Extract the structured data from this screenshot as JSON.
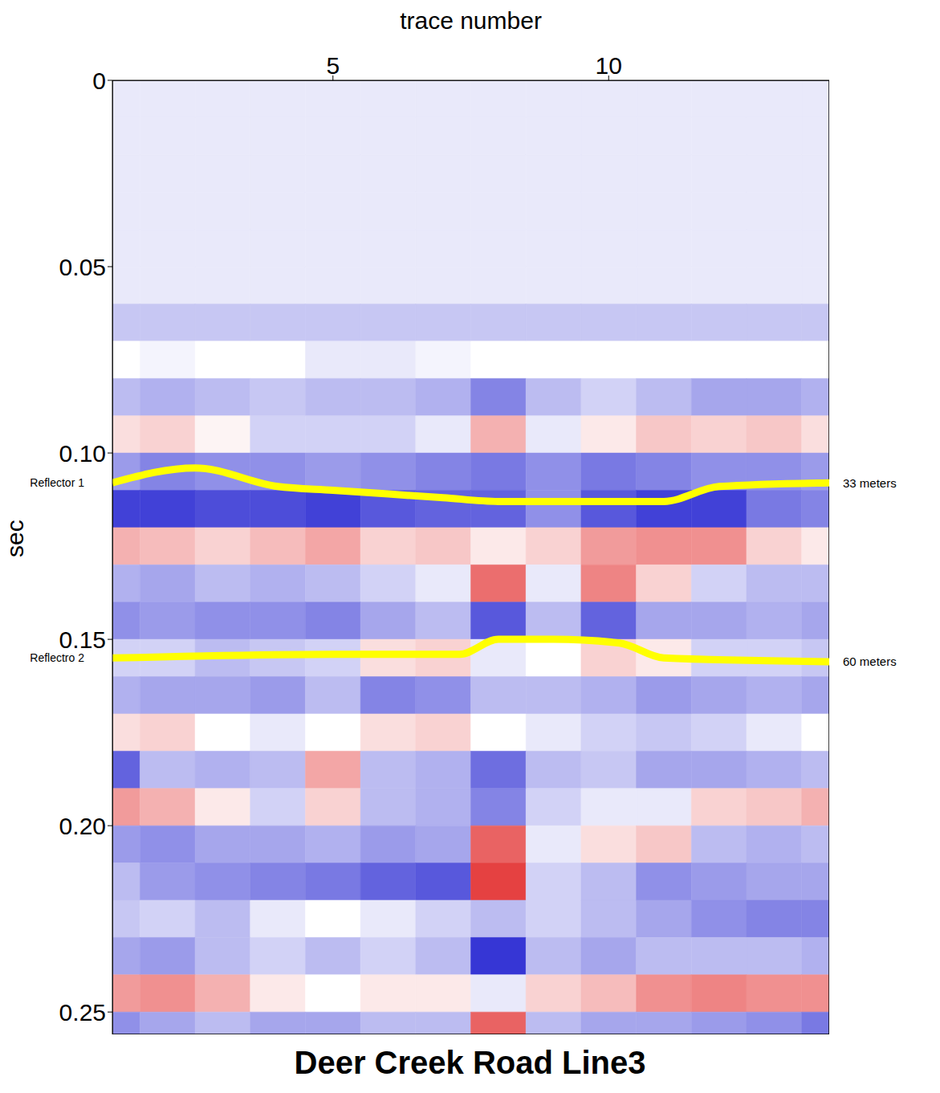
{
  "chart_data": {
    "type": "heatmap",
    "title": "Deer Creek Road Line3",
    "x_label": "trace number",
    "y_label": "sec",
    "xlim": [
      1,
      14
    ],
    "xticks": [
      5,
      10
    ],
    "ylim": [
      0,
      0.256
    ],
    "yticks": [
      0,
      0.05,
      {
        "value": 0.1,
        "label": "0.10"
      },
      0.15,
      {
        "value": 0.2,
        "label": "0.20"
      },
      0.25
    ],
    "cells": {
      "x_edges": [
        0.5,
        1.5,
        2.5,
        3.5,
        4.5,
        5.5,
        6.5,
        7.5,
        8.5,
        9.5,
        10.5,
        11.5,
        12.5,
        13.5,
        14.5
      ],
      "y_edges": [
        0,
        0.01,
        0.02,
        0.03,
        0.04,
        0.05,
        0.06,
        0.07,
        0.08,
        0.09,
        0.1,
        0.11,
        0.12,
        0.13,
        0.14,
        0.15,
        0.16,
        0.17,
        0.18,
        0.19,
        0.2,
        0.21,
        0.22,
        0.23,
        0.24,
        0.25,
        0.26
      ],
      "amplitude_range": [
        -1,
        1
      ],
      "colors": [
        "#2020d0",
        "#ffffff",
        "#e02020"
      ],
      "values": [
        [
          -0.1,
          -0.1,
          -0.1,
          -0.1,
          -0.1,
          -0.1,
          -0.1,
          -0.1,
          -0.1,
          -0.1,
          -0.1,
          -0.1,
          -0.1,
          -0.1
        ],
        [
          -0.1,
          -0.1,
          -0.1,
          -0.1,
          -0.1,
          -0.1,
          -0.1,
          -0.1,
          -0.1,
          -0.1,
          -0.1,
          -0.1,
          -0.1,
          -0.1
        ],
        [
          -0.1,
          -0.1,
          -0.1,
          -0.1,
          -0.1,
          -0.1,
          -0.1,
          -0.1,
          -0.1,
          -0.1,
          -0.1,
          -0.1,
          -0.1,
          -0.1
        ],
        [
          -0.1,
          -0.1,
          -0.1,
          -0.1,
          -0.1,
          -0.1,
          -0.1,
          -0.1,
          -0.1,
          -0.1,
          -0.1,
          -0.1,
          -0.1,
          -0.1
        ],
        [
          -0.1,
          -0.1,
          -0.1,
          -0.1,
          -0.1,
          -0.1,
          -0.1,
          -0.1,
          -0.1,
          -0.1,
          -0.1,
          -0.1,
          -0.1,
          -0.1
        ],
        [
          -0.1,
          -0.1,
          -0.1,
          -0.1,
          -0.1,
          -0.1,
          -0.1,
          -0.1,
          -0.1,
          -0.1,
          -0.1,
          -0.1,
          -0.1,
          -0.1
        ],
        [
          -0.25,
          -0.25,
          -0.25,
          -0.25,
          -0.25,
          -0.25,
          -0.25,
          -0.25,
          -0.25,
          -0.25,
          -0.25,
          -0.25,
          -0.25,
          -0.25
        ],
        [
          0,
          -0.05,
          0,
          0,
          -0.1,
          -0.1,
          -0.05,
          0,
          0,
          0,
          0,
          0,
          0,
          0
        ],
        [
          -0.3,
          -0.35,
          -0.3,
          -0.25,
          -0.3,
          -0.3,
          -0.35,
          -0.55,
          -0.3,
          -0.2,
          -0.3,
          -0.4,
          -0.4,
          -0.35
        ],
        [
          0.15,
          0.2,
          0.05,
          -0.2,
          -0.2,
          -0.2,
          -0.1,
          0.35,
          -0.1,
          0.1,
          0.25,
          0.2,
          0.25,
          0.15
        ],
        [
          -0.45,
          -0.55,
          -0.5,
          -0.5,
          -0.45,
          -0.5,
          -0.55,
          -0.6,
          -0.5,
          -0.6,
          -0.55,
          -0.5,
          -0.5,
          -0.45
        ],
        [
          -0.85,
          -0.85,
          -0.8,
          -0.8,
          -0.85,
          -0.75,
          -0.7,
          -0.7,
          -0.5,
          -0.75,
          -0.85,
          -0.85,
          -0.6,
          -0.55
        ],
        [
          0.35,
          0.3,
          0.2,
          0.3,
          0.4,
          0.2,
          0.25,
          0.1,
          0.2,
          0.45,
          0.5,
          0.5,
          0.2,
          0.1
        ],
        [
          -0.35,
          -0.4,
          -0.3,
          -0.35,
          -0.3,
          -0.2,
          -0.1,
          0.65,
          -0.1,
          0.55,
          0.2,
          -0.2,
          -0.3,
          -0.3
        ],
        [
          -0.5,
          -0.45,
          -0.5,
          -0.5,
          -0.55,
          -0.4,
          -0.3,
          -0.75,
          -0.3,
          -0.7,
          -0.4,
          -0.4,
          -0.35,
          -0.4
        ],
        [
          -0.2,
          -0.2,
          -0.3,
          -0.25,
          -0.2,
          0.15,
          0.2,
          -0.1,
          0,
          0.2,
          0.1,
          -0.2,
          -0.2,
          -0.25
        ],
        [
          -0.35,
          -0.4,
          -0.4,
          -0.45,
          -0.3,
          -0.55,
          -0.5,
          -0.3,
          -0.3,
          -0.35,
          -0.45,
          -0.4,
          -0.35,
          -0.4
        ],
        [
          0.15,
          0.2,
          0,
          -0.1,
          0,
          0.15,
          0.2,
          0,
          -0.1,
          -0.2,
          -0.25,
          -0.2,
          -0.1,
          0
        ],
        [
          -0.7,
          -0.3,
          -0.35,
          -0.3,
          0.4,
          -0.3,
          -0.35,
          -0.65,
          -0.3,
          -0.25,
          -0.4,
          -0.4,
          -0.35,
          -0.3
        ],
        [
          0.45,
          0.35,
          0.1,
          -0.2,
          0.2,
          -0.3,
          -0.35,
          -0.55,
          -0.2,
          -0.1,
          -0.1,
          0.2,
          0.25,
          0.35
        ],
        [
          -0.45,
          -0.5,
          -0.4,
          -0.4,
          -0.35,
          -0.45,
          -0.4,
          0.7,
          -0.1,
          0.15,
          0.25,
          -0.3,
          -0.35,
          -0.3
        ],
        [
          -0.3,
          -0.45,
          -0.5,
          -0.55,
          -0.6,
          -0.7,
          -0.75,
          0.85,
          -0.2,
          -0.3,
          -0.5,
          -0.45,
          -0.4,
          -0.4
        ],
        [
          -0.25,
          -0.2,
          -0.3,
          -0.1,
          0,
          -0.1,
          -0.2,
          -0.3,
          -0.2,
          -0.3,
          -0.4,
          -0.5,
          -0.55,
          -0.55
        ],
        [
          -0.4,
          -0.45,
          -0.3,
          -0.2,
          -0.3,
          -0.2,
          -0.3,
          -0.9,
          -0.3,
          -0.4,
          -0.3,
          -0.3,
          -0.3,
          -0.35
        ],
        [
          0.45,
          0.5,
          0.35,
          0.1,
          0,
          0.1,
          0.1,
          -0.1,
          0.2,
          0.3,
          0.5,
          0.55,
          0.5,
          0.5
        ],
        [
          -0.5,
          -0.4,
          -0.3,
          -0.4,
          -0.4,
          -0.3,
          -0.3,
          0.7,
          -0.3,
          -0.4,
          -0.4,
          -0.45,
          -0.5,
          -0.6
        ]
      ]
    },
    "series": [
      {
        "name": "Reflector 1",
        "color": "#ffff00",
        "annotation": "33 meters",
        "x": [
          1,
          2.5,
          4,
          5,
          7,
          8,
          11,
          12,
          14
        ],
        "values": [
          0.108,
          0.104,
          0.109,
          0.11,
          0.112,
          0.113,
          0.113,
          0.109,
          0.108
        ]
      },
      {
        "name": "Reflectro 2",
        "color": "#ffff00",
        "annotation": "60 meters",
        "x": [
          1,
          5,
          7.3,
          8,
          9,
          10.2,
          11,
          14
        ],
        "values": [
          0.155,
          0.154,
          0.154,
          0.15,
          0.15,
          0.151,
          0.155,
          0.156
        ]
      }
    ]
  }
}
